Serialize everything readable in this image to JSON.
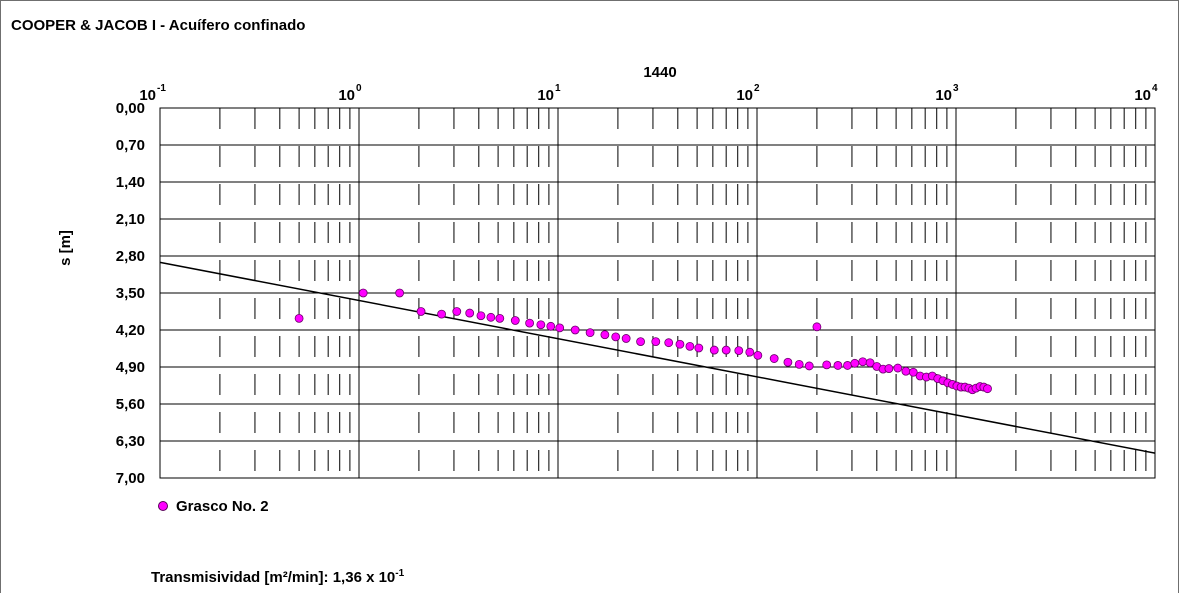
{
  "title": "COOPER & JACOB I - Acuífero confinado",
  "chart_data": {
    "type": "scatter",
    "x_scale": "log",
    "x_tick_bases": [
      "10",
      "10",
      "10",
      "10",
      "10",
      "10"
    ],
    "x_tick_exponents": [
      "-1",
      "0",
      "1",
      "2",
      "3",
      "4"
    ],
    "x_tick_values": [
      0.1,
      1,
      10,
      100,
      1000,
      10000
    ],
    "xlim": [
      0.1,
      10000
    ],
    "ylim": [
      0,
      7
    ],
    "y_inverted": true,
    "y_ticks": [
      "0,00",
      "0,70",
      "1,40",
      "2,10",
      "2,80",
      "3,50",
      "4,20",
      "4,90",
      "5,60",
      "6,30",
      "7,00"
    ],
    "ylabel": "s [m]",
    "marker_label": "1440",
    "marker_x": 1440,
    "grid": true,
    "series": [
      {
        "name": "Grasco No. 2",
        "color": "#ff00ff",
        "points": [
          [
            0.5,
            3.98
          ],
          [
            1.05,
            3.5
          ],
          [
            1.6,
            3.5
          ],
          [
            2.05,
            3.85
          ],
          [
            2.6,
            3.9
          ],
          [
            3.1,
            3.85
          ],
          [
            3.6,
            3.88
          ],
          [
            4.1,
            3.93
          ],
          [
            4.6,
            3.96
          ],
          [
            5.1,
            3.98
          ],
          [
            6.1,
            4.02
          ],
          [
            7.2,
            4.07
          ],
          [
            8.2,
            4.1
          ],
          [
            9.2,
            4.13
          ],
          [
            10.2,
            4.16
          ],
          [
            12.2,
            4.2
          ],
          [
            14.5,
            4.25
          ],
          [
            17.2,
            4.29
          ],
          [
            19.5,
            4.33
          ],
          [
            22,
            4.36
          ],
          [
            26,
            4.42
          ],
          [
            31,
            4.42
          ],
          [
            36,
            4.44
          ],
          [
            41,
            4.47
          ],
          [
            46,
            4.51
          ],
          [
            51,
            4.54
          ],
          [
            61,
            4.58
          ],
          [
            70,
            4.58
          ],
          [
            81,
            4.59
          ],
          [
            92,
            4.62
          ],
          [
            101,
            4.68
          ],
          [
            122,
            4.74
          ],
          [
            143,
            4.81
          ],
          [
            163,
            4.85
          ],
          [
            183,
            4.88
          ],
          [
            200,
            4.14
          ],
          [
            224,
            4.86
          ],
          [
            255,
            4.87
          ],
          [
            285,
            4.87
          ],
          [
            310,
            4.83
          ],
          [
            340,
            4.8
          ],
          [
            370,
            4.82
          ],
          [
            400,
            4.89
          ],
          [
            430,
            4.94
          ],
          [
            460,
            4.93
          ],
          [
            510,
            4.92
          ],
          [
            560,
            4.98
          ],
          [
            610,
            5.0
          ],
          [
            660,
            5.07
          ],
          [
            710,
            5.09
          ],
          [
            760,
            5.07
          ],
          [
            810,
            5.12
          ],
          [
            860,
            5.16
          ],
          [
            910,
            5.2
          ],
          [
            960,
            5.23
          ],
          [
            1010,
            5.26
          ],
          [
            1060,
            5.28
          ],
          [
            1110,
            5.28
          ],
          [
            1160,
            5.3
          ],
          [
            1210,
            5.33
          ],
          [
            1260,
            5.3
          ],
          [
            1320,
            5.27
          ],
          [
            1380,
            5.28
          ],
          [
            1440,
            5.31
          ]
        ]
      }
    ],
    "fit_line": {
      "color": "#000000",
      "from": [
        0.1,
        2.92
      ],
      "to": [
        10000,
        6.53
      ]
    }
  },
  "legend": {
    "label": "Grasco No. 2"
  },
  "footer": {
    "label": "Transmisividad [m²/min]:",
    "value_mantissa": "1,36 x 10",
    "value_exponent": "-1"
  }
}
